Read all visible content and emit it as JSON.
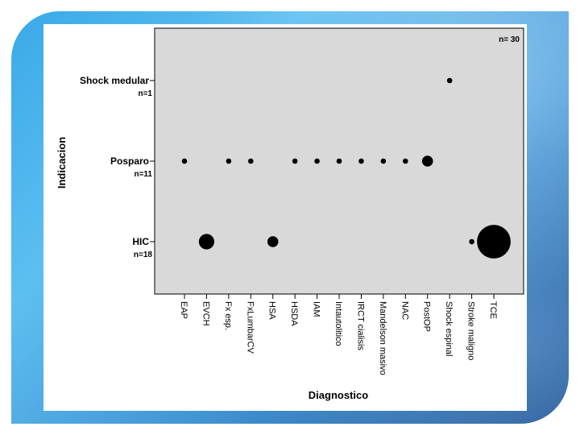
{
  "chart_data": {
    "type": "scatter",
    "title": "",
    "xlabel": "Diagnostico",
    "ylabel": "Indicacion",
    "annotation": "n= 30",
    "categories": [
      "EAP",
      "EVCH",
      "Fx esp.",
      "FxLumbarCV",
      "HSA",
      "HSDA",
      "IAM",
      "Intautolitico",
      "IRCT cialisis",
      "Mandelson masivo",
      "NAC",
      "PostOP",
      "Shock espinal",
      "Stroke maligno",
      "TCE"
    ],
    "y_categories": [
      {
        "label": "Shock medular",
        "count_label": "n=1"
      },
      {
        "label": "Posparo",
        "count_label": "n=11"
      },
      {
        "label": "HIC",
        "count_label": "n=18"
      }
    ],
    "points": [
      {
        "x": "Shock espinal",
        "y": "Shock medular",
        "count": 1
      },
      {
        "x": "EAP",
        "y": "Posparo",
        "count": 1
      },
      {
        "x": "Fx esp.",
        "y": "Posparo",
        "count": 1
      },
      {
        "x": "FxLumbarCV",
        "y": "Posparo",
        "count": 1
      },
      {
        "x": "HSDA",
        "y": "Posparo",
        "count": 1
      },
      {
        "x": "IAM",
        "y": "Posparo",
        "count": 1
      },
      {
        "x": "Intautolitico",
        "y": "Posparo",
        "count": 1
      },
      {
        "x": "IRCT cialisis",
        "y": "Posparo",
        "count": 1
      },
      {
        "x": "Mandelson masivo",
        "y": "Posparo",
        "count": 1
      },
      {
        "x": "NAC",
        "y": "Posparo",
        "count": 1
      },
      {
        "x": "PostOP",
        "y": "Posparo",
        "count": 2
      },
      {
        "x": "EVCH",
        "y": "HIC",
        "count": 4
      },
      {
        "x": "HSA",
        "y": "HIC",
        "count": 2
      },
      {
        "x": "Stroke maligno",
        "y": "HIC",
        "count": 1
      },
      {
        "x": "TCE",
        "y": "HIC",
        "count": 11
      }
    ],
    "grid": false,
    "colors": {
      "plot_background": "#d9d9d9",
      "marker": "#000000"
    }
  }
}
